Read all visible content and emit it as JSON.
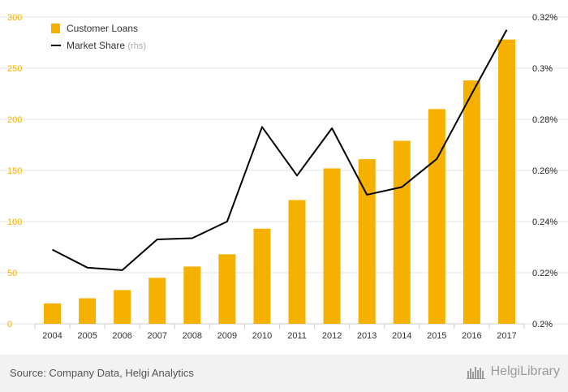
{
  "chart_data": {
    "type": "bar",
    "categories": [
      "2004",
      "2005",
      "2006",
      "2007",
      "2008",
      "2009",
      "2010",
      "2011",
      "2012",
      "2013",
      "2014",
      "2015",
      "2016",
      "2017"
    ],
    "series": [
      {
        "name": "Customer Loans",
        "type": "bar",
        "axis": "left",
        "color": "#f5b000",
        "values": [
          20,
          25,
          33,
          45,
          56,
          68,
          93,
          121,
          152,
          161,
          179,
          210,
          238,
          278
        ]
      },
      {
        "name": "Market Share",
        "type": "line",
        "axis": "right",
        "color": "#000000",
        "values": [
          0.229,
          0.222,
          0.221,
          0.233,
          0.2335,
          0.24,
          0.277,
          0.258,
          0.2765,
          0.2505,
          0.2535,
          0.2645,
          0.29,
          0.315
        ]
      }
    ],
    "legend": [
      {
        "label": "Customer Loans",
        "suffix": ""
      },
      {
        "label": "Market Share",
        "suffix": "(rhs)"
      }
    ],
    "legend_position": "top-left",
    "y_left": {
      "ylim": [
        0,
        300
      ],
      "ticks": [
        "0",
        "50",
        "100",
        "150",
        "200",
        "250",
        "300"
      ],
      "tick_values": [
        0,
        50,
        100,
        150,
        200,
        250,
        300
      ],
      "color": "#f5b000"
    },
    "y_right": {
      "ylim": [
        0.2,
        0.32
      ],
      "ticks": [
        "0.2%",
        "0.22%",
        "0.24%",
        "0.26%",
        "0.28%",
        "0.3%",
        "0.32%"
      ],
      "tick_values": [
        0.2,
        0.22,
        0.24,
        0.26,
        0.28,
        0.3,
        0.32
      ]
    },
    "grid": true
  },
  "footer": {
    "source": "Source: Company Data, Helgi Analytics",
    "brand": "HelgiLibrary"
  }
}
